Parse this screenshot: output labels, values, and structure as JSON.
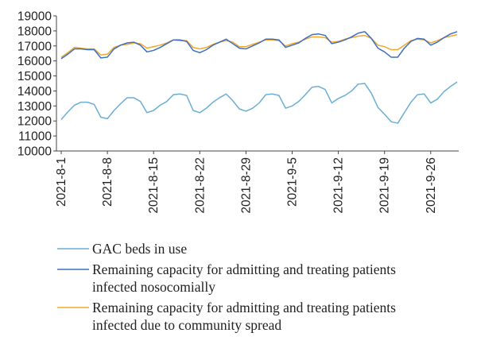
{
  "chart_data": {
    "type": "line",
    "title": "",
    "xlabel": "",
    "ylabel": "",
    "ylim": [
      10000,
      19000
    ],
    "yticks": [
      10000,
      11000,
      12000,
      13000,
      14000,
      15000,
      16000,
      17000,
      18000,
      19000
    ],
    "xticks": [
      "2021-8-1",
      "2021-8-8",
      "2021-8-15",
      "2021-8-22",
      "2021-8-29",
      "2021-9-5",
      "2021-9-12",
      "2021-9-19",
      "2021-9-26"
    ],
    "x": [
      "2021-8-1",
      "2021-8-2",
      "2021-8-3",
      "2021-8-4",
      "2021-8-5",
      "2021-8-6",
      "2021-8-7",
      "2021-8-8",
      "2021-8-9",
      "2021-8-10",
      "2021-8-11",
      "2021-8-12",
      "2021-8-13",
      "2021-8-14",
      "2021-8-15",
      "2021-8-16",
      "2021-8-17",
      "2021-8-18",
      "2021-8-19",
      "2021-8-20",
      "2021-8-21",
      "2021-8-22",
      "2021-8-23",
      "2021-8-24",
      "2021-8-25",
      "2021-8-26",
      "2021-8-27",
      "2021-8-28",
      "2021-8-29",
      "2021-8-30",
      "2021-8-31",
      "2021-9-1",
      "2021-9-2",
      "2021-9-3",
      "2021-9-4",
      "2021-9-5",
      "2021-9-6",
      "2021-9-7",
      "2021-9-8",
      "2021-9-9",
      "2021-9-10",
      "2021-9-11",
      "2021-9-12",
      "2021-9-13",
      "2021-9-14",
      "2021-9-15",
      "2021-9-16",
      "2021-9-17",
      "2021-9-18",
      "2021-9-19",
      "2021-9-20",
      "2021-9-21",
      "2021-9-22",
      "2021-9-23",
      "2021-9-24",
      "2021-9-25",
      "2021-9-26",
      "2021-9-27",
      "2021-9-28",
      "2021-9-29",
      "2021-9-30"
    ],
    "series": [
      {
        "name": "GAC beds in use",
        "color": "#6aaed6",
        "values": [
          12100,
          12600,
          13050,
          13250,
          13250,
          13100,
          12250,
          12150,
          12700,
          13150,
          13550,
          13550,
          13300,
          12550,
          12700,
          13050,
          13300,
          13750,
          13800,
          13700,
          12700,
          12550,
          12850,
          13250,
          13550,
          13800,
          13350,
          12800,
          12650,
          12850,
          13200,
          13750,
          13800,
          13700,
          12850,
          13000,
          13300,
          13750,
          14250,
          14300,
          14100,
          13200,
          13500,
          13700,
          14000,
          14450,
          14500,
          13850,
          12900,
          12450,
          11950,
          11850,
          12550,
          13250,
          13750,
          13800,
          13200,
          13450,
          13950,
          14300,
          14600
        ]
      },
      {
        "name": "Remaining capacity for admitting and treating patients infected nosocomially",
        "color": "#3d6fbf",
        "values": [
          16150,
          16450,
          16800,
          16800,
          16750,
          16750,
          16200,
          16250,
          16800,
          17050,
          17200,
          17250,
          17050,
          16600,
          16700,
          16900,
          17150,
          17400,
          17400,
          17300,
          16700,
          16550,
          16750,
          17050,
          17250,
          17450,
          17150,
          16850,
          16800,
          17000,
          17200,
          17450,
          17450,
          17400,
          16900,
          17050,
          17200,
          17500,
          17750,
          17800,
          17700,
          17150,
          17250,
          17400,
          17600,
          17850,
          17950,
          17500,
          16850,
          16600,
          16250,
          16250,
          16850,
          17300,
          17500,
          17450,
          17050,
          17250,
          17550,
          17800,
          17950
        ]
      },
      {
        "name": "Remaining capacity for admitting and treating patients infected due to community spread",
        "color": "#f0a830",
        "values": [
          16250,
          16550,
          16900,
          16850,
          16800,
          16800,
          16400,
          16450,
          16900,
          17050,
          17100,
          17200,
          17150,
          16850,
          16950,
          17050,
          17200,
          17400,
          17350,
          17350,
          16900,
          16800,
          16900,
          17100,
          17250,
          17350,
          17250,
          16950,
          16950,
          17100,
          17250,
          17400,
          17400,
          17350,
          17000,
          17150,
          17250,
          17450,
          17600,
          17600,
          17550,
          17250,
          17300,
          17450,
          17550,
          17650,
          17700,
          17500,
          17050,
          16950,
          16750,
          16750,
          17050,
          17350,
          17450,
          17400,
          17200,
          17350,
          17550,
          17650,
          17750
        ]
      }
    ],
    "legend_position": "bottom",
    "grid": false
  }
}
